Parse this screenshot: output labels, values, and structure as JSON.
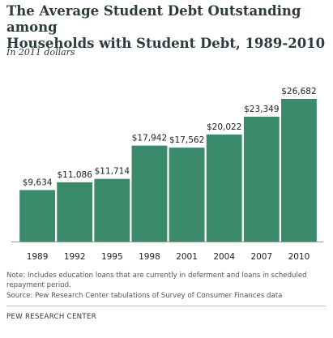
{
  "chart_data": {
    "type": "bar",
    "title": [
      "The Average Student Debt Outstanding among",
      "Households with Student Debt, 1989-2010"
    ],
    "subtitle": "In 2011 dollars",
    "categories": [
      "1989",
      "1992",
      "1995",
      "1998",
      "2001",
      "2004",
      "2007",
      "2010"
    ],
    "values": [
      9634,
      11086,
      11714,
      17942,
      17562,
      20022,
      23349,
      26682
    ],
    "value_labels": [
      "$9,634",
      "$11,086",
      "$11,714",
      "$17,942",
      "$17,562",
      "$20,022",
      "$23,349",
      "$26,682"
    ],
    "color": "#3a8a6c",
    "note": "Note: Includes education loans that are currently in deferment and loans in scheduled repayment period.",
    "source": "Source: Pew Research Center tabulations of Survey of Consumer Finances data",
    "organization": "PEW RESEARCH CENTER"
  }
}
